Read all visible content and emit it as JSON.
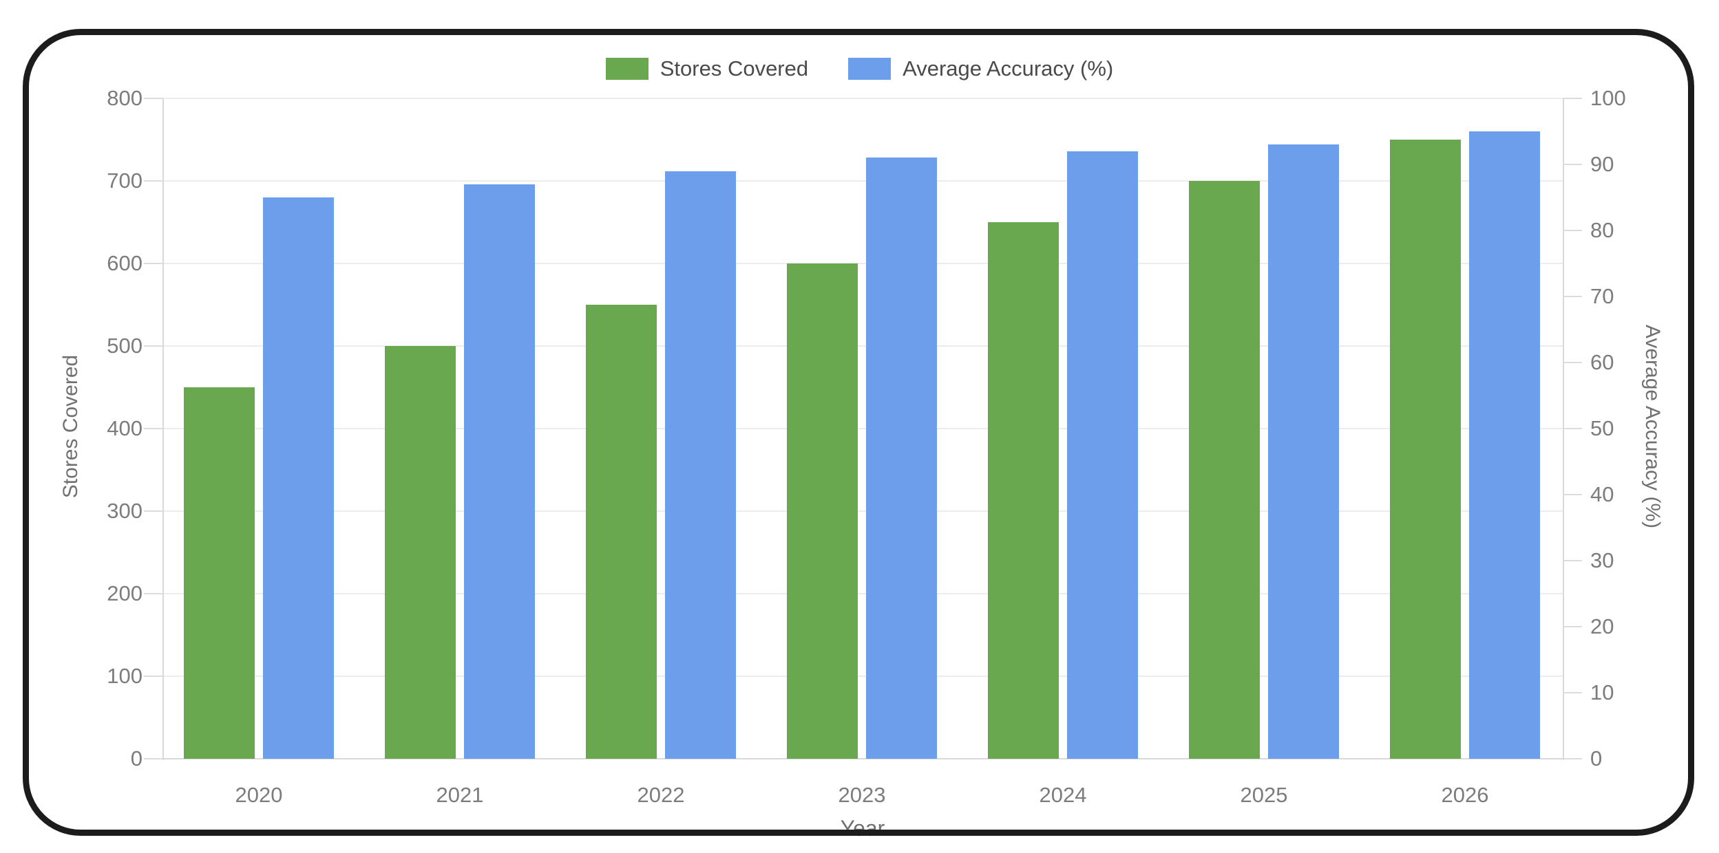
{
  "frame": {
    "background": "#ffffff",
    "border_color": "#1c1c1c"
  },
  "legend": {
    "position": "top",
    "items": [
      {
        "label": "Stores Covered",
        "color": "#6aa84f"
      },
      {
        "label": "Average Accuracy (%)",
        "color": "#6d9eeb"
      }
    ]
  },
  "chart_data": {
    "type": "bar",
    "title": "",
    "categories": [
      "2020",
      "2021",
      "2022",
      "2023",
      "2024",
      "2025",
      "2026"
    ],
    "series": [
      {
        "name": "Stores Covered",
        "yaxis": "left",
        "color": "#6aa84f",
        "values": [
          450,
          500,
          550,
          600,
          650,
          700,
          750
        ]
      },
      {
        "name": "Average Accuracy (%)",
        "yaxis": "right",
        "color": "#6d9eeb",
        "values": [
          85,
          87,
          89,
          91,
          92,
          93,
          95
        ]
      }
    ],
    "xlabel": "Year",
    "left_axis": {
      "title": "Stores Covered",
      "min": 0,
      "max": 800,
      "tick_step": 100,
      "tick_labels": [
        "0",
        "100",
        "200",
        "300",
        "400",
        "500",
        "600",
        "700",
        "800"
      ]
    },
    "right_axis": {
      "title": "Average Accuracy (%)",
      "min": 0,
      "max": 100,
      "tick_step": 10,
      "tick_labels": [
        "0",
        "10",
        "20",
        "30",
        "40",
        "50",
        "60",
        "70",
        "80",
        "90",
        "100"
      ]
    },
    "grid": "horizontal",
    "legend_position": "top"
  }
}
